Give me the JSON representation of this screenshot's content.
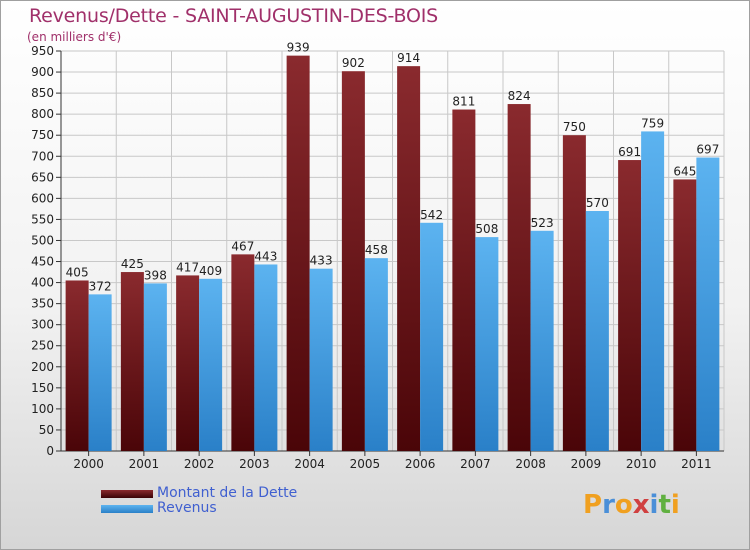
{
  "header": {
    "title": "Revenus/Dette - SAINT-AUGUSTIN-DES-BOIS",
    "subtitle": "(en milliers d'€)"
  },
  "legend": {
    "items": [
      {
        "label": "Montant de la Dette",
        "color": "#7a1a1e"
      },
      {
        "label": "Revenus",
        "color": "#4aa3e6"
      }
    ]
  },
  "brand": {
    "text": "Proxiti",
    "letters": [
      {
        "ch": "P",
        "color": "#f0a020"
      },
      {
        "ch": "r",
        "color": "#4a8fd8"
      },
      {
        "ch": "o",
        "color": "#f0a020"
      },
      {
        "ch": "x",
        "color": "#d04040"
      },
      {
        "ch": "i",
        "color": "#4a8fd8"
      },
      {
        "ch": "t",
        "color": "#60b040"
      },
      {
        "ch": "i",
        "color": "#f0a020"
      }
    ]
  },
  "chart_data": {
    "type": "bar",
    "title": "Revenus/Dette - SAINT-AUGUSTIN-DES-BOIS",
    "subtitle": "(en milliers d'€)",
    "categories": [
      "2000",
      "2001",
      "2002",
      "2003",
      "2004",
      "2005",
      "2006",
      "2007",
      "2008",
      "2009",
      "2010",
      "2011"
    ],
    "series": [
      {
        "name": "Montant de la Dette",
        "color": "#7a1a1e",
        "values": [
          405,
          425,
          417,
          467,
          939,
          902,
          914,
          811,
          824,
          750,
          691,
          645
        ]
      },
      {
        "name": "Revenus",
        "color": "#4aa3e6",
        "values": [
          372,
          398,
          409,
          443,
          433,
          458,
          542,
          508,
          523,
          570,
          759,
          697
        ]
      }
    ],
    "ylim": [
      0,
      950
    ],
    "ytick_step": 50,
    "grid": true,
    "legend_position": "bottom-left"
  }
}
